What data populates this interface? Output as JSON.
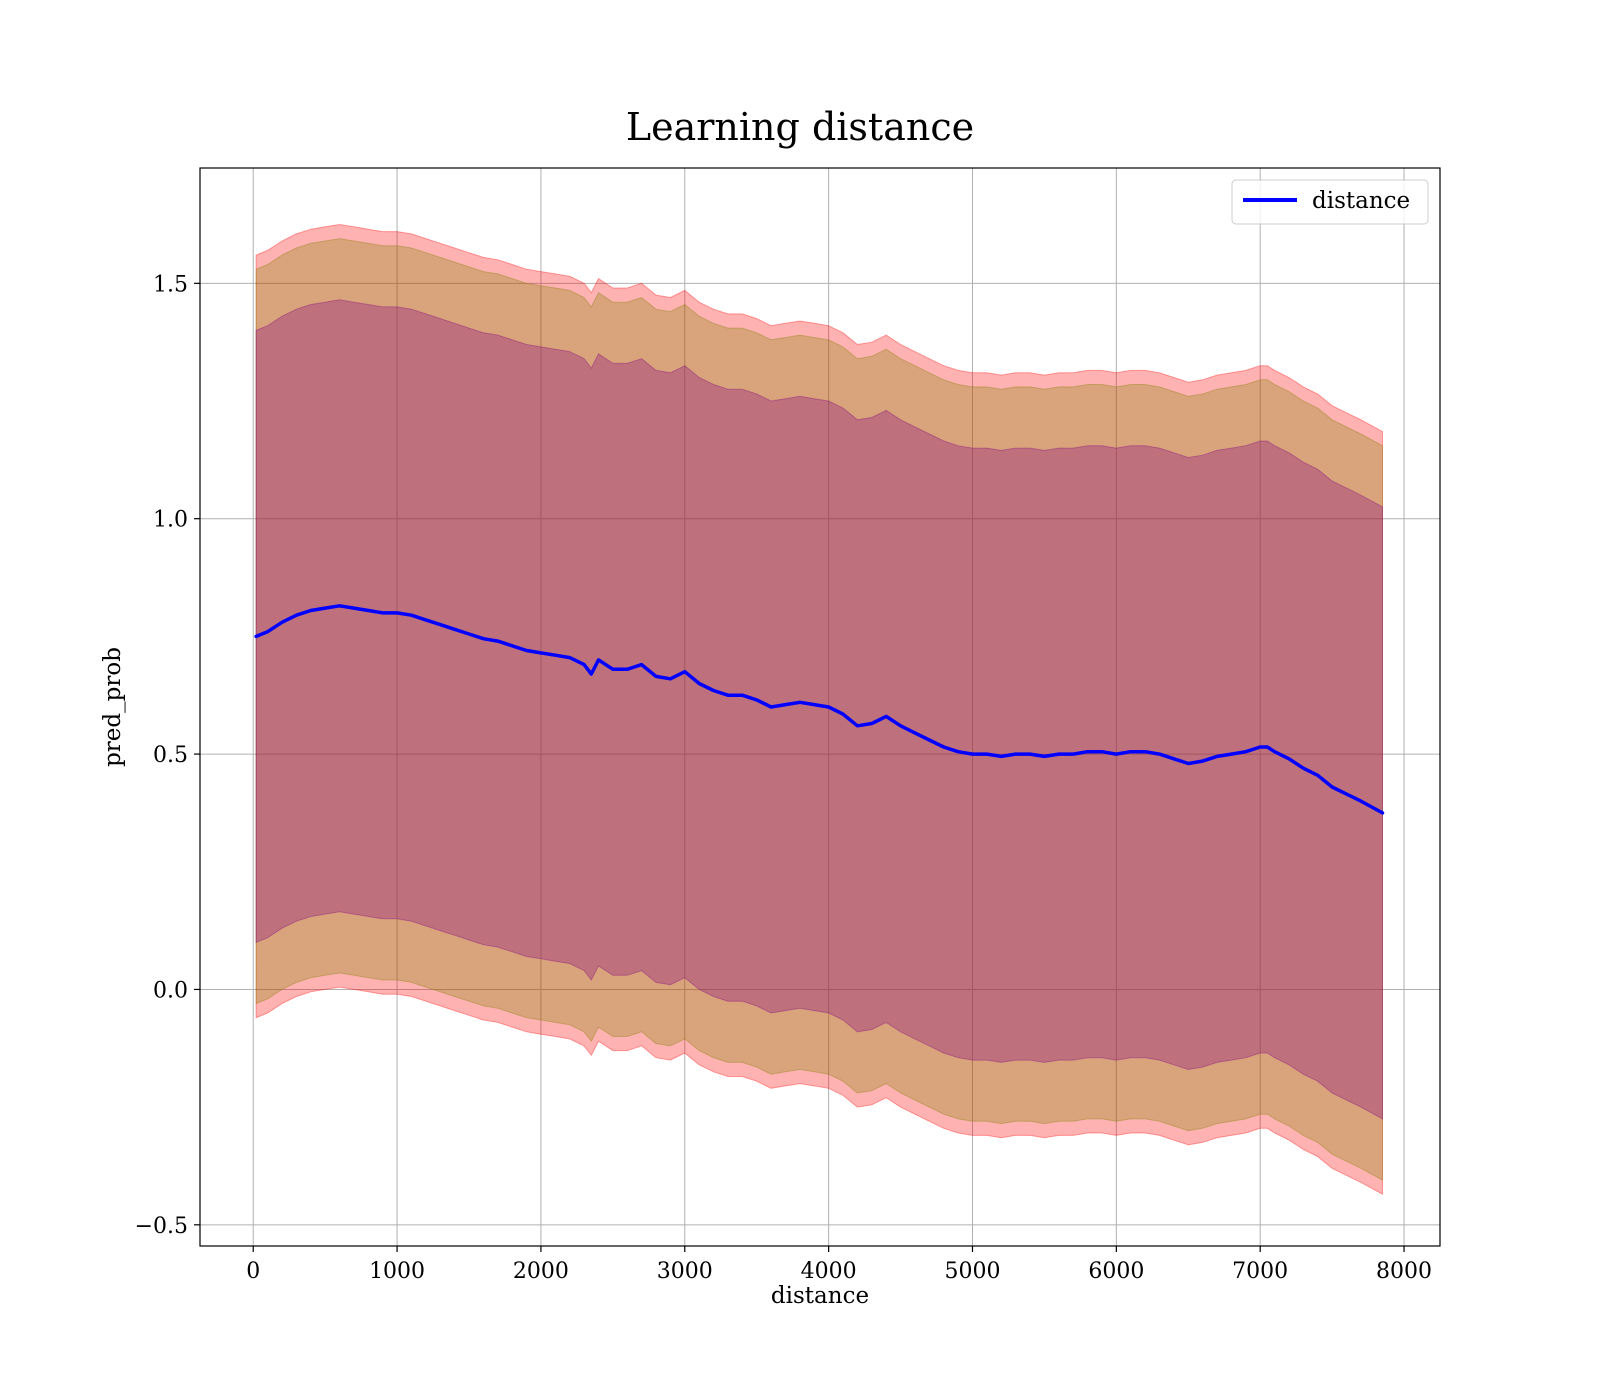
{
  "chart_data": {
    "type": "line",
    "title": "Learning distance",
    "xlabel": "distance",
    "ylabel": "pred_prob",
    "xlim": [
      -370,
      8250
    ],
    "ylim": [
      -0.545,
      1.745
    ],
    "xticks": [
      0,
      1000,
      2000,
      3000,
      4000,
      5000,
      6000,
      7000,
      8000
    ],
    "xtick_labels": [
      "0",
      "1000",
      "2000",
      "3000",
      "4000",
      "5000",
      "6000",
      "7000",
      "8000"
    ],
    "yticks": [
      -0.5,
      0.0,
      0.5,
      1.0,
      1.5
    ],
    "ytick_labels": [
      "−0.5",
      "0.0",
      "0.5",
      "1.0",
      "1.5"
    ],
    "grid": true,
    "legend": {
      "position": "top-right",
      "entries": [
        {
          "name": "distance",
          "color": "#0000ff"
        }
      ]
    },
    "series": [
      {
        "name": "distance",
        "color": "#0000ff",
        "x": [
          20,
          100,
          200,
          300,
          400,
          500,
          600,
          700,
          800,
          900,
          1000,
          1100,
          1200,
          1300,
          1400,
          1500,
          1600,
          1700,
          1800,
          1900,
          2000,
          2100,
          2200,
          2300,
          2350,
          2400,
          2500,
          2600,
          2700,
          2800,
          2900,
          3000,
          3100,
          3200,
          3300,
          3400,
          3500,
          3600,
          3700,
          3800,
          3900,
          4000,
          4100,
          4200,
          4300,
          4400,
          4500,
          4600,
          4700,
          4800,
          4900,
          5000,
          5100,
          5200,
          5300,
          5400,
          5500,
          5600,
          5700,
          5800,
          5900,
          6000,
          6100,
          6200,
          6300,
          6400,
          6500,
          6600,
          6700,
          6800,
          6900,
          7000,
          7050,
          7100,
          7200,
          7300,
          7400,
          7500,
          7600,
          7700,
          7850
        ],
        "values": [
          0.75,
          0.76,
          0.78,
          0.795,
          0.805,
          0.81,
          0.815,
          0.81,
          0.805,
          0.8,
          0.8,
          0.795,
          0.785,
          0.775,
          0.765,
          0.755,
          0.745,
          0.74,
          0.73,
          0.72,
          0.715,
          0.71,
          0.705,
          0.69,
          0.67,
          0.7,
          0.68,
          0.68,
          0.69,
          0.665,
          0.66,
          0.675,
          0.65,
          0.635,
          0.625,
          0.625,
          0.615,
          0.6,
          0.605,
          0.61,
          0.605,
          0.6,
          0.585,
          0.56,
          0.565,
          0.58,
          0.56,
          0.545,
          0.53,
          0.515,
          0.505,
          0.5,
          0.5,
          0.495,
          0.5,
          0.5,
          0.495,
          0.5,
          0.5,
          0.505,
          0.505,
          0.5,
          0.505,
          0.505,
          0.5,
          0.49,
          0.48,
          0.485,
          0.495,
          0.5,
          0.505,
          0.515,
          0.515,
          0.505,
          0.49,
          0.47,
          0.455,
          0.43,
          0.415,
          0.4,
          0.375
        ]
      }
    ],
    "bands": [
      {
        "color": "#ff0000",
        "opacity": 0.3,
        "half_width": [
          0.81,
          0.81,
          0.81,
          0.81,
          0.81,
          0.81,
          0.81,
          0.81,
          0.81,
          0.81,
          0.81,
          0.81,
          0.81,
          0.81,
          0.81,
          0.81,
          0.81,
          0.81,
          0.81,
          0.81,
          0.81,
          0.81,
          0.81,
          0.81,
          0.81,
          0.81,
          0.81,
          0.81,
          0.81,
          0.81,
          0.81,
          0.81,
          0.81,
          0.81,
          0.81,
          0.81,
          0.81,
          0.81,
          0.81,
          0.81,
          0.81,
          0.81,
          0.81,
          0.81,
          0.81,
          0.81,
          0.81,
          0.81,
          0.81,
          0.81,
          0.81,
          0.81,
          0.81,
          0.81,
          0.81,
          0.81,
          0.81,
          0.81,
          0.81,
          0.81,
          0.81,
          0.81,
          0.81,
          0.81,
          0.81,
          0.81,
          0.81,
          0.81,
          0.81,
          0.81,
          0.81,
          0.81,
          0.81,
          0.81,
          0.81,
          0.81,
          0.81,
          0.81,
          0.81,
          0.81,
          0.81
        ]
      },
      {
        "color": "#808000",
        "opacity": 0.3,
        "half_width": [
          0.78,
          0.78,
          0.78,
          0.78,
          0.78,
          0.78,
          0.78,
          0.78,
          0.78,
          0.78,
          0.78,
          0.78,
          0.78,
          0.78,
          0.78,
          0.78,
          0.78,
          0.78,
          0.78,
          0.78,
          0.78,
          0.78,
          0.78,
          0.78,
          0.78,
          0.78,
          0.78,
          0.78,
          0.78,
          0.78,
          0.78,
          0.78,
          0.78,
          0.78,
          0.78,
          0.78,
          0.78,
          0.78,
          0.78,
          0.78,
          0.78,
          0.78,
          0.78,
          0.78,
          0.78,
          0.78,
          0.78,
          0.78,
          0.78,
          0.78,
          0.78,
          0.78,
          0.78,
          0.78,
          0.78,
          0.78,
          0.78,
          0.78,
          0.78,
          0.78,
          0.78,
          0.78,
          0.78,
          0.78,
          0.78,
          0.78,
          0.78,
          0.78,
          0.78,
          0.78,
          0.78,
          0.78,
          0.78,
          0.78,
          0.78,
          0.78,
          0.78,
          0.78,
          0.78,
          0.78,
          0.78
        ]
      },
      {
        "color": "#800080",
        "opacity": 0.3,
        "half_width": [
          0.65,
          0.65,
          0.65,
          0.65,
          0.65,
          0.65,
          0.65,
          0.65,
          0.65,
          0.65,
          0.65,
          0.65,
          0.65,
          0.65,
          0.65,
          0.65,
          0.65,
          0.65,
          0.65,
          0.65,
          0.65,
          0.65,
          0.65,
          0.65,
          0.65,
          0.65,
          0.65,
          0.65,
          0.65,
          0.65,
          0.65,
          0.65,
          0.65,
          0.65,
          0.65,
          0.65,
          0.65,
          0.65,
          0.65,
          0.65,
          0.65,
          0.65,
          0.65,
          0.65,
          0.65,
          0.65,
          0.65,
          0.65,
          0.65,
          0.65,
          0.65,
          0.65,
          0.65,
          0.65,
          0.65,
          0.65,
          0.65,
          0.65,
          0.65,
          0.65,
          0.65,
          0.65,
          0.65,
          0.65,
          0.65,
          0.65,
          0.65,
          0.65,
          0.65,
          0.65,
          0.65,
          0.65,
          0.65,
          0.65,
          0.65,
          0.65,
          0.65,
          0.65,
          0.65,
          0.65,
          0.65
        ]
      }
    ]
  }
}
